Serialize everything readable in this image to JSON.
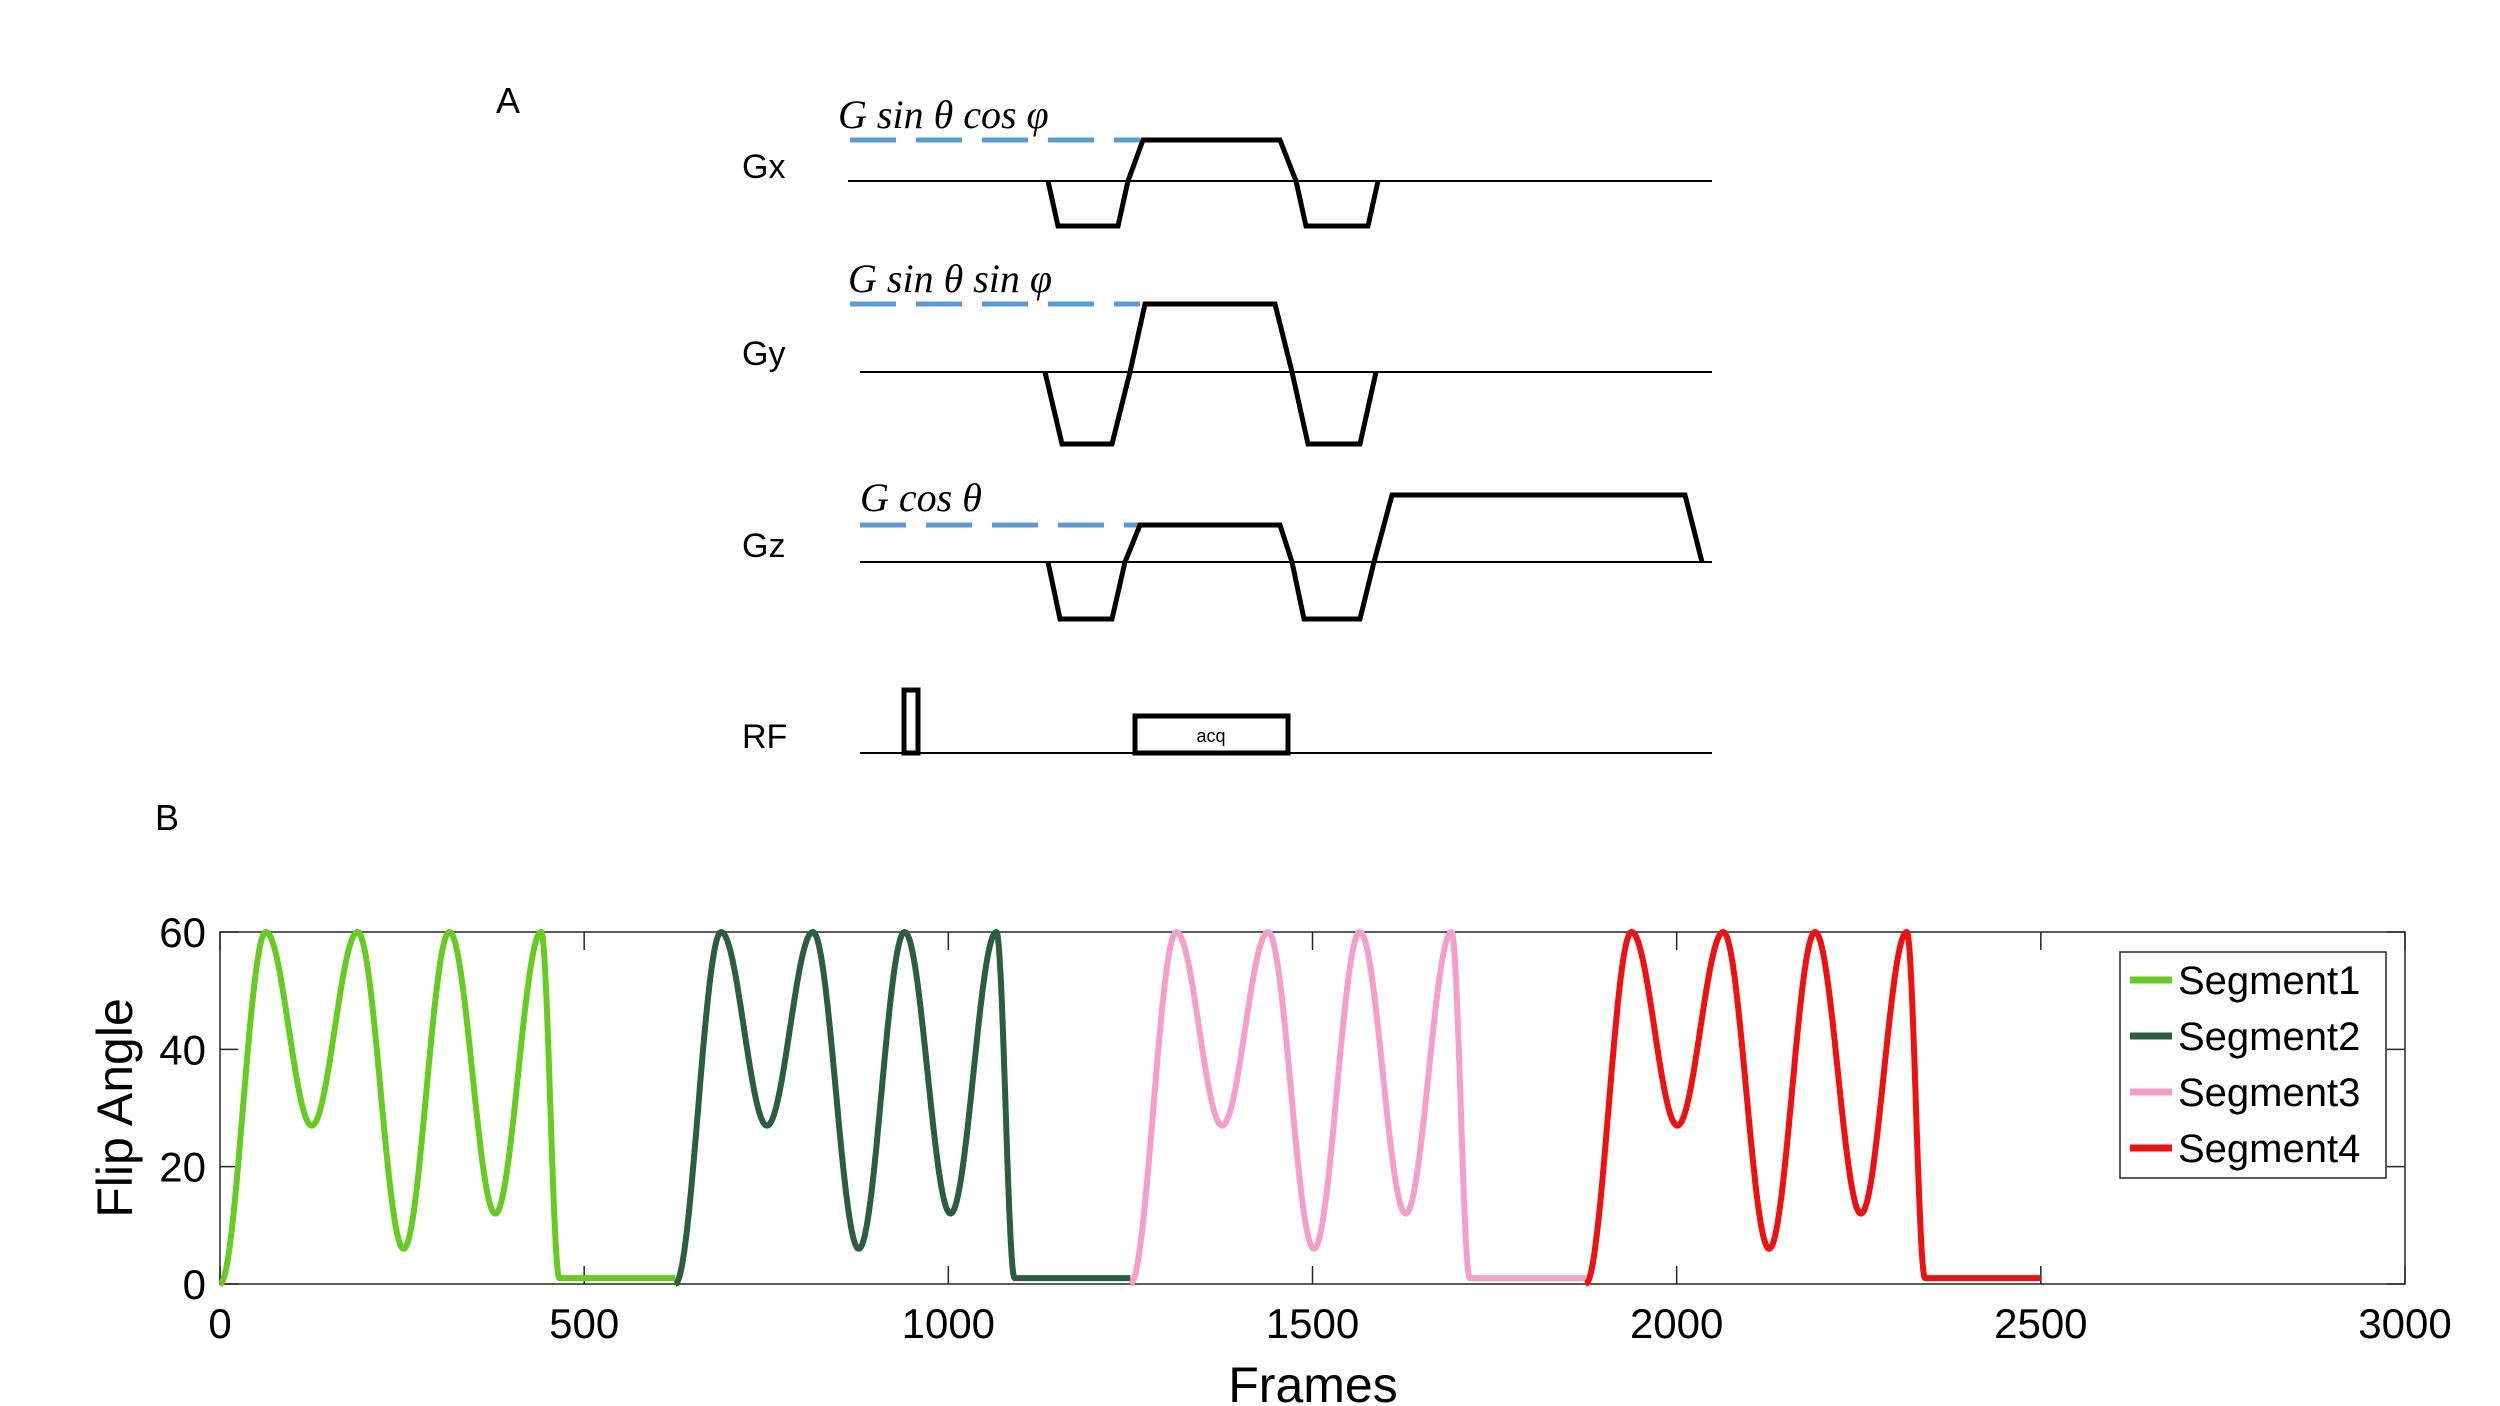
{
  "panel_a": {
    "label": "A",
    "channels": [
      {
        "name": "Gx",
        "formula": "G sin θ cos φ"
      },
      {
        "name": "Gy",
        "formula": "G sin θ sin φ"
      },
      {
        "name": "Gz",
        "formula": "G cos θ"
      },
      {
        "name": "RF",
        "formula": ""
      }
    ],
    "acq_label": "acq",
    "colors": {
      "dashed_line": "#5b9bd5",
      "waveform": "#000000"
    }
  },
  "panel_b": {
    "label": "B"
  },
  "chart_data": {
    "type": "line",
    "title": "",
    "xlabel": "Frames",
    "ylabel": "Flip Angle",
    "xlim": [
      0,
      3000
    ],
    "ylim": [
      0,
      60
    ],
    "xticks": [
      0,
      500,
      1000,
      1500,
      2000,
      2500,
      3000
    ],
    "yticks": [
      0,
      20,
      40,
      60
    ],
    "legend_position": "top-right",
    "series": [
      {
        "name": "Segment1",
        "color": "#66cc22",
        "x_start": 0,
        "x": [
          0,
          63,
          126,
          189,
          252,
          315,
          378,
          441,
          466,
          625
        ],
        "y": [
          0,
          60,
          27,
          60,
          6,
          60,
          12,
          60,
          1,
          1
        ]
      },
      {
        "name": "Segment2",
        "color": "#2a5e3e",
        "x_start": 625,
        "x": [
          625,
          688,
          751,
          814,
          877,
          940,
          1003,
          1066,
          1091,
          1250
        ],
        "y": [
          0,
          60,
          27,
          60,
          6,
          60,
          12,
          60,
          1,
          1
        ]
      },
      {
        "name": "Segment3",
        "color": "#f59fc8",
        "x_start": 1250,
        "x": [
          1250,
          1313,
          1376,
          1439,
          1502,
          1565,
          1628,
          1691,
          1716,
          1875
        ],
        "y": [
          0,
          60,
          27,
          60,
          6,
          60,
          12,
          60,
          1,
          1
        ]
      },
      {
        "name": "Segment4",
        "color": "#ee1111",
        "x_start": 1875,
        "x": [
          1875,
          1938,
          2001,
          2064,
          2127,
          2190,
          2253,
          2316,
          2341,
          2500
        ],
        "y": [
          0,
          60,
          27,
          60,
          6,
          60,
          12,
          60,
          1,
          1
        ]
      }
    ]
  }
}
